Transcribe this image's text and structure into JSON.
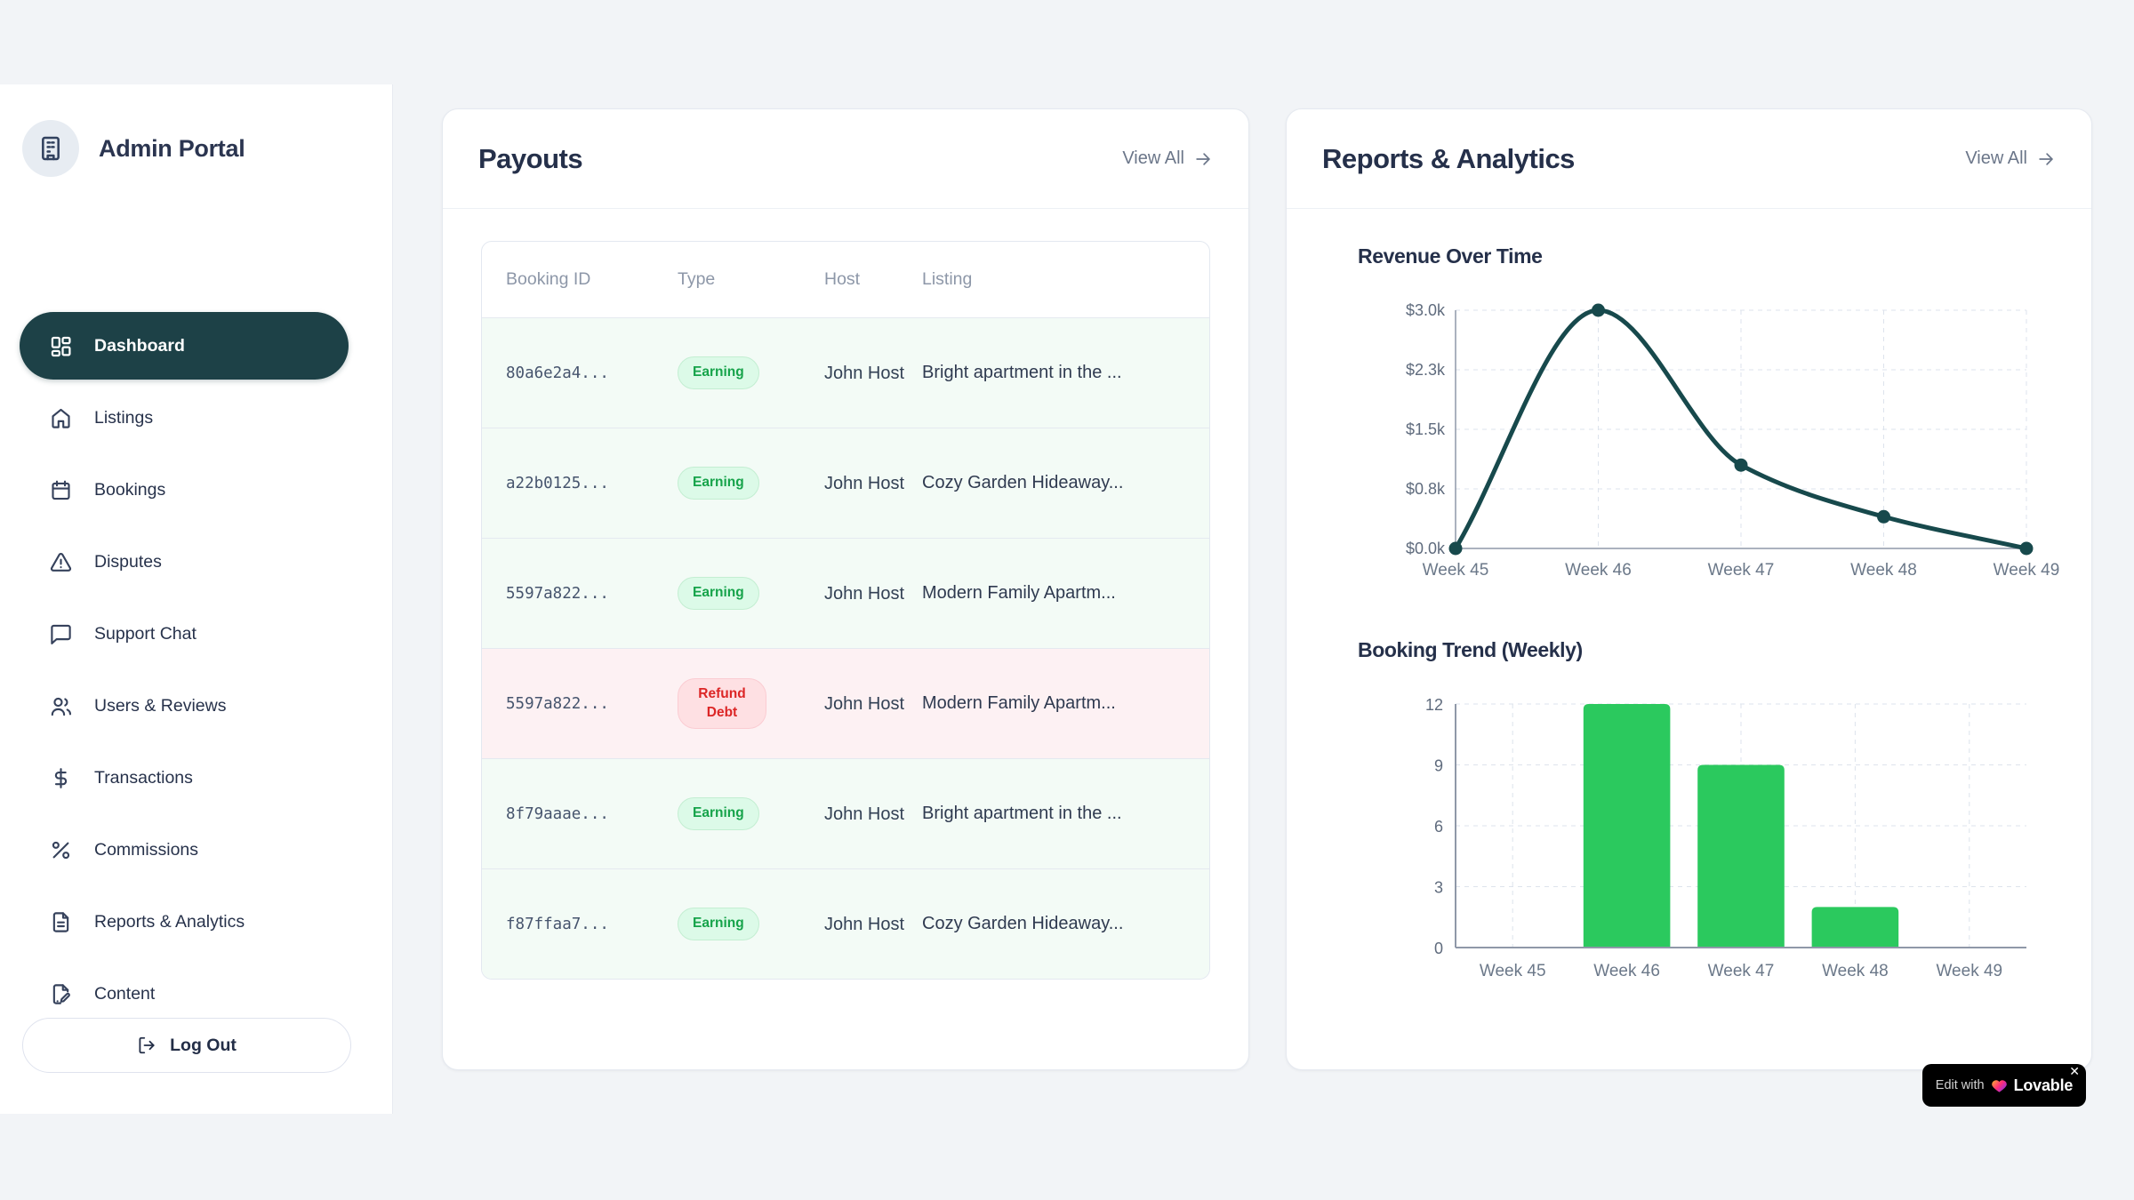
{
  "app": {
    "title": "Admin Portal"
  },
  "sidebar": {
    "items": [
      {
        "id": "dashboard",
        "label": "Dashboard",
        "icon": "layout-dashboard-icon",
        "active": true
      },
      {
        "id": "listings",
        "label": "Listings",
        "icon": "home-icon",
        "active": false
      },
      {
        "id": "bookings",
        "label": "Bookings",
        "icon": "calendar-icon",
        "active": false
      },
      {
        "id": "disputes",
        "label": "Disputes",
        "icon": "alert-triangle-icon",
        "active": false
      },
      {
        "id": "support-chat",
        "label": "Support Chat",
        "icon": "message-square-icon",
        "active": false
      },
      {
        "id": "users-reviews",
        "label": "Users & Reviews",
        "icon": "users-icon",
        "active": false
      },
      {
        "id": "transactions",
        "label": "Transactions",
        "icon": "dollar-icon",
        "active": false
      },
      {
        "id": "commissions",
        "label": "Commissions",
        "icon": "percent-icon",
        "active": false
      },
      {
        "id": "reports-analytics",
        "label": "Reports & Analytics",
        "icon": "file-text-icon",
        "active": false
      },
      {
        "id": "content",
        "label": "Content",
        "icon": "file-pen-icon",
        "active": false
      }
    ],
    "logout_label": "Log Out"
  },
  "payouts": {
    "title": "Payouts",
    "view_all": "View All",
    "columns": [
      "Booking ID",
      "Type",
      "Host",
      "Listing"
    ],
    "rows": [
      {
        "booking_id": "80a6e2a4...",
        "type": "Earning",
        "type_variant": "earning",
        "host": "John Host",
        "listing": "Bright apartment in the ..."
      },
      {
        "booking_id": "a22b0125...",
        "type": "Earning",
        "type_variant": "earning",
        "host": "John Host",
        "listing": "Cozy Garden Hideaway..."
      },
      {
        "booking_id": "5597a822...",
        "type": "Earning",
        "type_variant": "earning",
        "host": "John Host",
        "listing": "Modern Family Apartm..."
      },
      {
        "booking_id": "5597a822...",
        "type": "Refund Debt",
        "type_variant": "refund",
        "host": "John Host",
        "listing": "Modern Family Apartm..."
      },
      {
        "booking_id": "8f79aaae...",
        "type": "Earning",
        "type_variant": "earning",
        "host": "John Host",
        "listing": "Bright apartment in the ..."
      },
      {
        "booking_id": "f87ffaa7...",
        "type": "Earning",
        "type_variant": "earning",
        "host": "John Host",
        "listing": "Cozy Garden Hideaway..."
      }
    ]
  },
  "reports": {
    "title": "Reports & Analytics",
    "view_all": "View All"
  },
  "chart_data": [
    {
      "type": "line",
      "title": "Revenue Over Time",
      "x": [
        "Week 45",
        "Week 46",
        "Week 47",
        "Week 48",
        "Week 49"
      ],
      "values": [
        0,
        3000,
        1050,
        400,
        0
      ],
      "ylim": [
        0,
        3000
      ],
      "yticks": [
        {
          "v": 0,
          "label": "$0.0k"
        },
        {
          "v": 750,
          "label": "$0.8k"
        },
        {
          "v": 1500,
          "label": "$1.5k"
        },
        {
          "v": 2250,
          "label": "$2.3k"
        },
        {
          "v": 3000,
          "label": "$3.0k"
        }
      ],
      "grid": "dashed",
      "line_color": "#17494c"
    },
    {
      "type": "bar",
      "title": "Booking Trend (Weekly)",
      "categories": [
        "Week 45",
        "Week 46",
        "Week 47",
        "Week 48",
        "Week 49"
      ],
      "values": [
        0,
        12,
        9,
        2,
        0
      ],
      "ylim": [
        0,
        12
      ],
      "yticks": [
        {
          "v": 0,
          "label": "0"
        },
        {
          "v": 3,
          "label": "3"
        },
        {
          "v": 6,
          "label": "6"
        },
        {
          "v": 9,
          "label": "9"
        },
        {
          "v": 12,
          "label": "12"
        }
      ],
      "grid": "dashed",
      "bar_color": "#2bc95e"
    }
  ],
  "lovable": {
    "prefix": "Edit with",
    "brand": "Lovable",
    "close": "✕"
  },
  "colors": {
    "active_nav": "#1d4147",
    "line": "#17494c",
    "bar": "#2bc95e",
    "earning_text": "#16a34a",
    "refund_text": "#dc2626",
    "axis": "#8f98a8",
    "gridline": "#dde3ec"
  }
}
